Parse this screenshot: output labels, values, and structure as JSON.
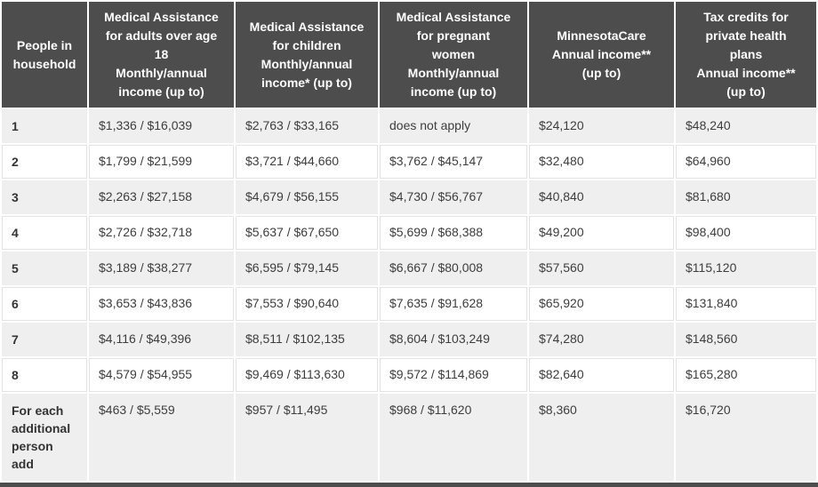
{
  "colors": {
    "header_bg": "#4d4d4d",
    "header_text": "#ffffff",
    "row_alt_bg": "#efefef",
    "row_bg": "#ffffff",
    "text": "#3d3d3d",
    "label_text": "#333333",
    "grid_line": "#e3e3e3",
    "bottom_bar": "#4d4d4d"
  },
  "table": {
    "columns": [
      {
        "id": "people-in-household",
        "label": "People in household",
        "lines": [
          "People in",
          "household"
        ]
      },
      {
        "id": "ma-adults",
        "label": "Medical Assistance for adults over age 18 Monthly/annual income (up to)",
        "lines": [
          "Medical Assistance",
          "for adults over age",
          "18",
          "Monthly/annual",
          "income (up to)"
        ]
      },
      {
        "id": "ma-children",
        "label": "Medical Assistance for children Monthly/annual income* (up to)",
        "lines": [
          "Medical Assistance",
          "for children",
          "Monthly/annual",
          "income* (up to)"
        ]
      },
      {
        "id": "ma-pregnant-women",
        "label": "Medical Assistance for pregnant women Monthly/annual income (up to)",
        "lines": [
          "Medical Assistance",
          "for pregnant",
          "women",
          "Monthly/annual",
          "income (up to)"
        ]
      },
      {
        "id": "minnesotacare",
        "label": "MinnesotaCare Annual income** (up to)",
        "lines": [
          "MinnesotaCare",
          "Annual income**",
          "(up to)"
        ]
      },
      {
        "id": "tax-credits",
        "label": "Tax credits for private health plans Annual income** (up to)",
        "lines": [
          "Tax credits for",
          "private health",
          "plans",
          "Annual income**",
          "(up to)"
        ]
      }
    ],
    "rows": [
      {
        "label": "1",
        "label_lines": [
          "1"
        ],
        "cells": [
          "$1,336 / $16,039",
          "$2,763 / $33,165",
          "does not apply",
          "$24,120",
          "$48,240"
        ]
      },
      {
        "label": "2",
        "label_lines": [
          "2"
        ],
        "cells": [
          "$1,799 / $21,599",
          "$3,721 / $44,660",
          "$3,762 / $45,147",
          "$32,480",
          "$64,960"
        ]
      },
      {
        "label": "3",
        "label_lines": [
          "3"
        ],
        "cells": [
          "$2,263 / $27,158",
          "$4,679 / $56,155",
          "$4,730 / $56,767",
          "$40,840",
          "$81,680"
        ]
      },
      {
        "label": "4",
        "label_lines": [
          "4"
        ],
        "cells": [
          "$2,726 / $32,718",
          "$5,637 / $67,650",
          "$5,699 / $68,388",
          "$49,200",
          "$98,400"
        ]
      },
      {
        "label": "5",
        "label_lines": [
          "5"
        ],
        "cells": [
          "$3,189 / $38,277",
          "$6,595 / $79,145",
          "$6,667 / $80,008",
          "$57,560",
          "$115,120"
        ]
      },
      {
        "label": "6",
        "label_lines": [
          "6"
        ],
        "cells": [
          "$3,653 / $43,836",
          "$7,553 / $90,640",
          "$7,635 / $91,628",
          "$65,920",
          "$131,840"
        ]
      },
      {
        "label": "7",
        "label_lines": [
          "7"
        ],
        "cells": [
          "$4,116 / $49,396",
          "$8,511 / $102,135",
          "$8,604 / $103,249",
          "$74,280",
          "$148,560"
        ]
      },
      {
        "label": "8",
        "label_lines": [
          "8"
        ],
        "cells": [
          "$4,579 / $54,955",
          "$9,469 / $113,630",
          "$9,572 / $114,869",
          "$82,640",
          "$165,280"
        ]
      },
      {
        "label": "For each additional person add",
        "label_lines": [
          "For each",
          "additional",
          "person",
          "add"
        ],
        "cells": [
          "$463 / $5,559",
          "$957 / $11,495",
          "$968 / $11,620",
          "$8,360",
          "$16,720"
        ]
      }
    ]
  }
}
